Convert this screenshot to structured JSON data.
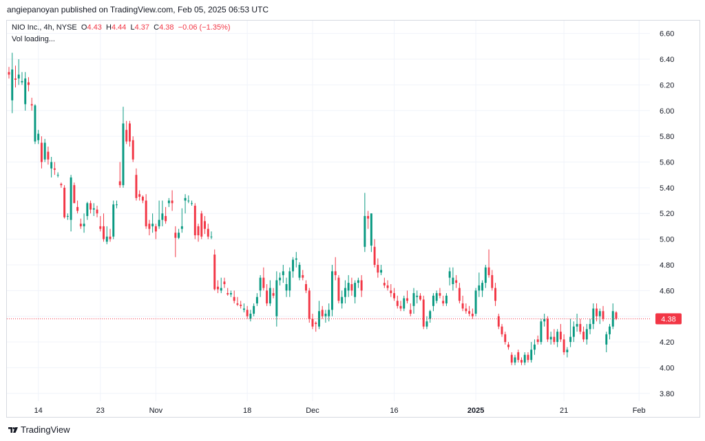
{
  "attribution": "angiepanoyan published on TradingView.com, Feb 05, 2025 06:53 UTC",
  "legend": {
    "symbol": "NIO Inc., 4h, NYSE",
    "open_label": "O",
    "open": "4.43",
    "high_label": "H",
    "high": "4.44",
    "low_label": "L",
    "low": "4.37",
    "close_label": "C",
    "close": "4.38",
    "change": "−0.06 (−1.35%)"
  },
  "volume_status": "Vol loading...",
  "footer": {
    "brand": "TradingView",
    "icon": "tradingview-logo-icon"
  },
  "colors": {
    "up": "#089981",
    "down": "#f23645",
    "grid": "#f0f3fa",
    "text": "#131722",
    "price_line": "#f23645"
  },
  "chart_data": {
    "type": "candlestick",
    "title": "NIO Inc., 4h, NYSE",
    "interval": "4h",
    "ylim": [
      3.74,
      6.7
    ],
    "y_ticks": [
      "6.60",
      "6.40",
      "6.20",
      "6.00",
      "5.80",
      "5.60",
      "5.40",
      "5.20",
      "5.00",
      "4.80",
      "4.60",
      "4.40",
      "4.20",
      "4.00",
      "3.80"
    ],
    "x_ticks": [
      {
        "label": "14",
        "index": 9,
        "bold": false
      },
      {
        "label": "23",
        "index": 28,
        "bold": false
      },
      {
        "label": "Nov",
        "index": 45,
        "bold": false
      },
      {
        "label": "18",
        "index": 73,
        "bold": false
      },
      {
        "label": "Dec",
        "index": 93,
        "bold": false
      },
      {
        "label": "16",
        "index": 118,
        "bold": false
      },
      {
        "label": "2025",
        "index": 143,
        "bold": true
      },
      {
        "label": "21",
        "index": 170,
        "bold": false
      },
      {
        "label": "Feb",
        "index": 193,
        "bold": false
      }
    ],
    "last_price": "4.38",
    "last_price_value": 4.38,
    "candles": [
      [
        6.3,
        6.34,
        6.25,
        6.28
      ],
      [
        6.08,
        6.45,
        5.98,
        6.32
      ],
      [
        6.25,
        6.35,
        6.18,
        6.24
      ],
      [
        6.25,
        6.4,
        6.2,
        6.28
      ],
      [
        6.22,
        6.3,
        6.2,
        6.23
      ],
      [
        6.05,
        6.3,
        6.0,
        6.25
      ],
      [
        6.22,
        6.26,
        6.15,
        6.2
      ],
      [
        6.05,
        6.1,
        6.0,
        6.04
      ],
      [
        5.76,
        6.05,
        5.74,
        6.04
      ],
      [
        5.77,
        5.85,
        5.74,
        5.82
      ],
      [
        5.75,
        5.8,
        5.55,
        5.6
      ],
      [
        5.62,
        5.78,
        5.6,
        5.75
      ],
      [
        5.68,
        5.72,
        5.58,
        5.62
      ],
      [
        5.55,
        5.64,
        5.48,
        5.6
      ],
      [
        5.55,
        5.6,
        5.5,
        5.54
      ],
      [
        5.5,
        5.52,
        5.48,
        5.5
      ],
      [
        5.43,
        5.44,
        5.4,
        5.42
      ],
      [
        5.4,
        5.42,
        5.16,
        5.17
      ],
      [
        5.18,
        5.2,
        5.15,
        5.18
      ],
      [
        5.15,
        5.5,
        5.06,
        5.48
      ],
      [
        5.42,
        5.44,
        5.28,
        5.28
      ],
      [
        5.25,
        5.3,
        5.2,
        5.22
      ],
      [
        5.12,
        5.16,
        5.08,
        5.1
      ],
      [
        5.1,
        5.2,
        5.05,
        5.12
      ],
      [
        5.18,
        5.29,
        5.15,
        5.28
      ],
      [
        5.28,
        5.3,
        5.2,
        5.23
      ],
      [
        5.23,
        5.28,
        5.18,
        5.24
      ],
      [
        5.23,
        5.26,
        5.17,
        5.2
      ],
      [
        5.1,
        5.18,
        5.06,
        5.08
      ],
      [
        5.1,
        5.2,
        4.98,
        5.0
      ],
      [
        4.98,
        5.1,
        4.96,
        5.02
      ],
      [
        5.02,
        5.08,
        4.98,
        5.0
      ],
      [
        5.02,
        5.3,
        5.0,
        5.27
      ],
      [
        5.27,
        5.3,
        5.24,
        5.27
      ],
      [
        5.45,
        5.6,
        5.4,
        5.42
      ],
      [
        5.42,
        6.03,
        5.4,
        5.9
      ],
      [
        5.85,
        5.92,
        5.74,
        5.76
      ],
      [
        5.9,
        5.92,
        5.72,
        5.76
      ],
      [
        5.77,
        5.8,
        5.6,
        5.62
      ],
      [
        5.5,
        5.55,
        5.3,
        5.32
      ],
      [
        5.35,
        5.38,
        5.3,
        5.33
      ],
      [
        5.33,
        5.34,
        5.28,
        5.3
      ],
      [
        5.3,
        5.35,
        5.08,
        5.1
      ],
      [
        5.12,
        5.15,
        5.03,
        5.08
      ],
      [
        5.1,
        5.2,
        5.05,
        5.12
      ],
      [
        5.1,
        5.12,
        5.0,
        5.06
      ],
      [
        5.1,
        5.3,
        5.08,
        5.15
      ],
      [
        5.15,
        5.3,
        5.1,
        5.2
      ],
      [
        5.18,
        5.25,
        5.12,
        5.14
      ],
      [
        5.28,
        5.32,
        5.25,
        5.3
      ],
      [
        5.3,
        5.38,
        5.22,
        5.28
      ],
      [
        5.05,
        5.1,
        4.86,
        5.01
      ],
      [
        5.01,
        5.08,
        5.0,
        5.05
      ],
      [
        5.08,
        5.24,
        5.05,
        5.1
      ],
      [
        5.3,
        5.35,
        5.2,
        5.32
      ],
      [
        5.3,
        5.34,
        5.28,
        5.3
      ],
      [
        5.28,
        5.3,
        5.26,
        5.28
      ],
      [
        5.26,
        5.28,
        5.0,
        5.03
      ],
      [
        5.1,
        5.12,
        4.98,
        5.03
      ],
      [
        5.2,
        5.22,
        5.0,
        5.02
      ],
      [
        5.14,
        5.18,
        5.04,
        5.08
      ],
      [
        5.08,
        5.12,
        5.0,
        5.02
      ],
      [
        5.02,
        5.06,
        5.0,
        5.02
      ],
      [
        4.88,
        4.92,
        4.6,
        4.61
      ],
      [
        4.63,
        4.68,
        4.58,
        4.61
      ],
      [
        4.6,
        4.7,
        4.58,
        4.62
      ],
      [
        4.67,
        4.7,
        4.62,
        4.65
      ],
      [
        4.58,
        4.62,
        4.56,
        4.57
      ],
      [
        4.57,
        4.6,
        4.55,
        4.58
      ],
      [
        4.55,
        4.6,
        4.5,
        4.52
      ],
      [
        4.5,
        4.55,
        4.48,
        4.49
      ],
      [
        4.49,
        4.52,
        4.46,
        4.48
      ],
      [
        4.45,
        4.5,
        4.43,
        4.46
      ],
      [
        4.45,
        4.48,
        4.38,
        4.4
      ],
      [
        4.38,
        4.45,
        4.36,
        4.42
      ],
      [
        4.42,
        4.5,
        4.4,
        4.48
      ],
      [
        4.5,
        4.58,
        4.48,
        4.55
      ],
      [
        4.6,
        4.72,
        4.55,
        4.7
      ],
      [
        4.7,
        4.78,
        4.6,
        4.62
      ],
      [
        4.6,
        4.65,
        4.48,
        4.5
      ],
      [
        4.5,
        4.68,
        4.48,
        4.62
      ],
      [
        4.58,
        4.62,
        4.54,
        4.56
      ],
      [
        4.4,
        4.75,
        4.32,
        4.68
      ],
      [
        4.68,
        4.74,
        4.64,
        4.7
      ],
      [
        4.72,
        4.8,
        4.66,
        4.75
      ],
      [
        4.6,
        4.7,
        4.55,
        4.65
      ],
      [
        4.6,
        4.78,
        4.55,
        4.75
      ],
      [
        4.75,
        4.86,
        4.7,
        4.84
      ],
      [
        4.84,
        4.9,
        4.78,
        4.85
      ],
      [
        4.7,
        4.82,
        4.68,
        4.8
      ],
      [
        4.72,
        4.76,
        4.68,
        4.7
      ],
      [
        4.65,
        4.68,
        4.58,
        4.6
      ],
      [
        4.6,
        4.62,
        4.35,
        4.38
      ],
      [
        4.38,
        4.42,
        4.3,
        4.32
      ],
      [
        4.35,
        4.36,
        4.28,
        4.34
      ],
      [
        4.32,
        4.52,
        4.3,
        4.44
      ],
      [
        4.45,
        4.48,
        4.38,
        4.4
      ],
      [
        4.4,
        4.45,
        4.35,
        4.42
      ],
      [
        4.4,
        4.5,
        4.36,
        4.45
      ],
      [
        4.45,
        4.8,
        4.4,
        4.75
      ],
      [
        4.75,
        4.86,
        4.68,
        4.72
      ],
      [
        4.7,
        4.72,
        4.5,
        4.52
      ],
      [
        4.5,
        4.6,
        4.46,
        4.55
      ],
      [
        4.55,
        4.68,
        4.5,
        4.62
      ],
      [
        4.6,
        4.72,
        4.55,
        4.66
      ],
      [
        4.65,
        4.7,
        4.56,
        4.6
      ],
      [
        4.55,
        4.68,
        4.5,
        4.66
      ],
      [
        4.66,
        4.7,
        4.62,
        4.68
      ],
      [
        4.68,
        4.72,
        4.55,
        4.6
      ],
      [
        4.94,
        5.36,
        4.9,
        5.18
      ],
      [
        5.18,
        5.22,
        5.08,
        5.16
      ],
      [
        4.95,
        5.2,
        4.9,
        5.2
      ],
      [
        4.94,
        5.0,
        4.78,
        4.8
      ],
      [
        4.8,
        4.85,
        4.7,
        4.74
      ],
      [
        4.74,
        4.8,
        4.72,
        4.76
      ],
      [
        4.66,
        4.7,
        4.62,
        4.64
      ],
      [
        4.64,
        4.68,
        4.6,
        4.62
      ],
      [
        4.6,
        4.65,
        4.55,
        4.58
      ],
      [
        4.58,
        4.62,
        4.52,
        4.54
      ],
      [
        4.52,
        4.56,
        4.46,
        4.48
      ],
      [
        4.48,
        4.52,
        4.44,
        4.46
      ],
      [
        4.46,
        4.56,
        4.44,
        4.54
      ],
      [
        4.54,
        4.6,
        4.5,
        4.52
      ],
      [
        4.45,
        4.5,
        4.4,
        4.42
      ],
      [
        4.48,
        4.62,
        4.42,
        4.58
      ],
      [
        4.55,
        4.6,
        4.5,
        4.56
      ],
      [
        4.56,
        4.58,
        4.52,
        4.53
      ],
      [
        4.53,
        4.56,
        4.3,
        4.32
      ],
      [
        4.32,
        4.4,
        4.3,
        4.36
      ],
      [
        4.38,
        4.45,
        4.35,
        4.44
      ],
      [
        4.48,
        4.58,
        4.44,
        4.56
      ],
      [
        4.52,
        4.6,
        4.5,
        4.58
      ],
      [
        4.58,
        4.62,
        4.54,
        4.56
      ],
      [
        4.52,
        4.56,
        4.48,
        4.5
      ],
      [
        4.5,
        4.58,
        4.48,
        4.56
      ],
      [
        4.7,
        4.78,
        4.64,
        4.75
      ],
      [
        4.65,
        4.78,
        4.6,
        4.7
      ],
      [
        4.68,
        4.72,
        4.62,
        4.66
      ],
      [
        4.62,
        4.66,
        4.5,
        4.52
      ],
      [
        4.5,
        4.56,
        4.44,
        4.46
      ],
      [
        4.46,
        4.5,
        4.42,
        4.44
      ],
      [
        4.44,
        4.48,
        4.4,
        4.42
      ],
      [
        4.42,
        4.46,
        4.38,
        4.4
      ],
      [
        4.42,
        4.62,
        4.4,
        4.6
      ],
      [
        4.6,
        4.74,
        4.55,
        4.64
      ],
      [
        4.6,
        4.68,
        4.55,
        4.66
      ],
      [
        4.66,
        4.8,
        4.62,
        4.78
      ],
      [
        4.78,
        4.92,
        4.7,
        4.72
      ],
      [
        4.72,
        4.76,
        4.6,
        4.62
      ],
      [
        4.62,
        4.66,
        4.48,
        4.52
      ],
      [
        4.4,
        4.42,
        4.3,
        4.32
      ],
      [
        4.32,
        4.34,
        4.24,
        4.26
      ],
      [
        4.26,
        4.28,
        4.18,
        4.2
      ],
      [
        4.18,
        4.2,
        4.14,
        4.16
      ],
      [
        4.1,
        4.12,
        4.02,
        4.04
      ],
      [
        4.04,
        4.1,
        4.02,
        4.08
      ],
      [
        4.12,
        4.14,
        4.04,
        4.06
      ],
      [
        4.06,
        4.08,
        4.02,
        4.04
      ],
      [
        4.04,
        4.12,
        4.02,
        4.1
      ],
      [
        4.1,
        4.12,
        4.04,
        4.06
      ],
      [
        4.06,
        4.2,
        4.04,
        4.14
      ],
      [
        4.14,
        4.22,
        4.1,
        4.18
      ],
      [
        4.22,
        4.25,
        4.18,
        4.2
      ],
      [
        4.2,
        4.38,
        4.18,
        4.36
      ],
      [
        4.36,
        4.42,
        4.32,
        4.38
      ],
      [
        4.38,
        4.4,
        4.2,
        4.22
      ],
      [
        4.22,
        4.28,
        4.18,
        4.24
      ],
      [
        4.24,
        4.3,
        4.18,
        4.2
      ],
      [
        4.2,
        4.3,
        4.16,
        4.28
      ],
      [
        4.28,
        4.34,
        4.2,
        4.22
      ],
      [
        4.22,
        4.26,
        4.1,
        4.12
      ],
      [
        4.12,
        4.16,
        4.08,
        4.14
      ],
      [
        4.2,
        4.38,
        4.16,
        4.24
      ],
      [
        4.24,
        4.36,
        4.2,
        4.32
      ],
      [
        4.32,
        4.42,
        4.28,
        4.34
      ],
      [
        4.34,
        4.38,
        4.26,
        4.28
      ],
      [
        4.28,
        4.32,
        4.2,
        4.22
      ],
      [
        4.22,
        4.34,
        4.18,
        4.3
      ],
      [
        4.3,
        4.38,
        4.26,
        4.34
      ],
      [
        4.34,
        4.5,
        4.3,
        4.46
      ],
      [
        4.46,
        4.5,
        4.36,
        4.4
      ],
      [
        4.4,
        4.46,
        4.34,
        4.44
      ],
      [
        4.44,
        4.48,
        4.36,
        4.38
      ],
      [
        4.18,
        4.28,
        4.12,
        4.26
      ],
      [
        4.26,
        4.34,
        4.22,
        4.32
      ],
      [
        4.32,
        4.5,
        4.3,
        4.44
      ],
      [
        4.43,
        4.44,
        4.37,
        4.38
      ]
    ]
  }
}
